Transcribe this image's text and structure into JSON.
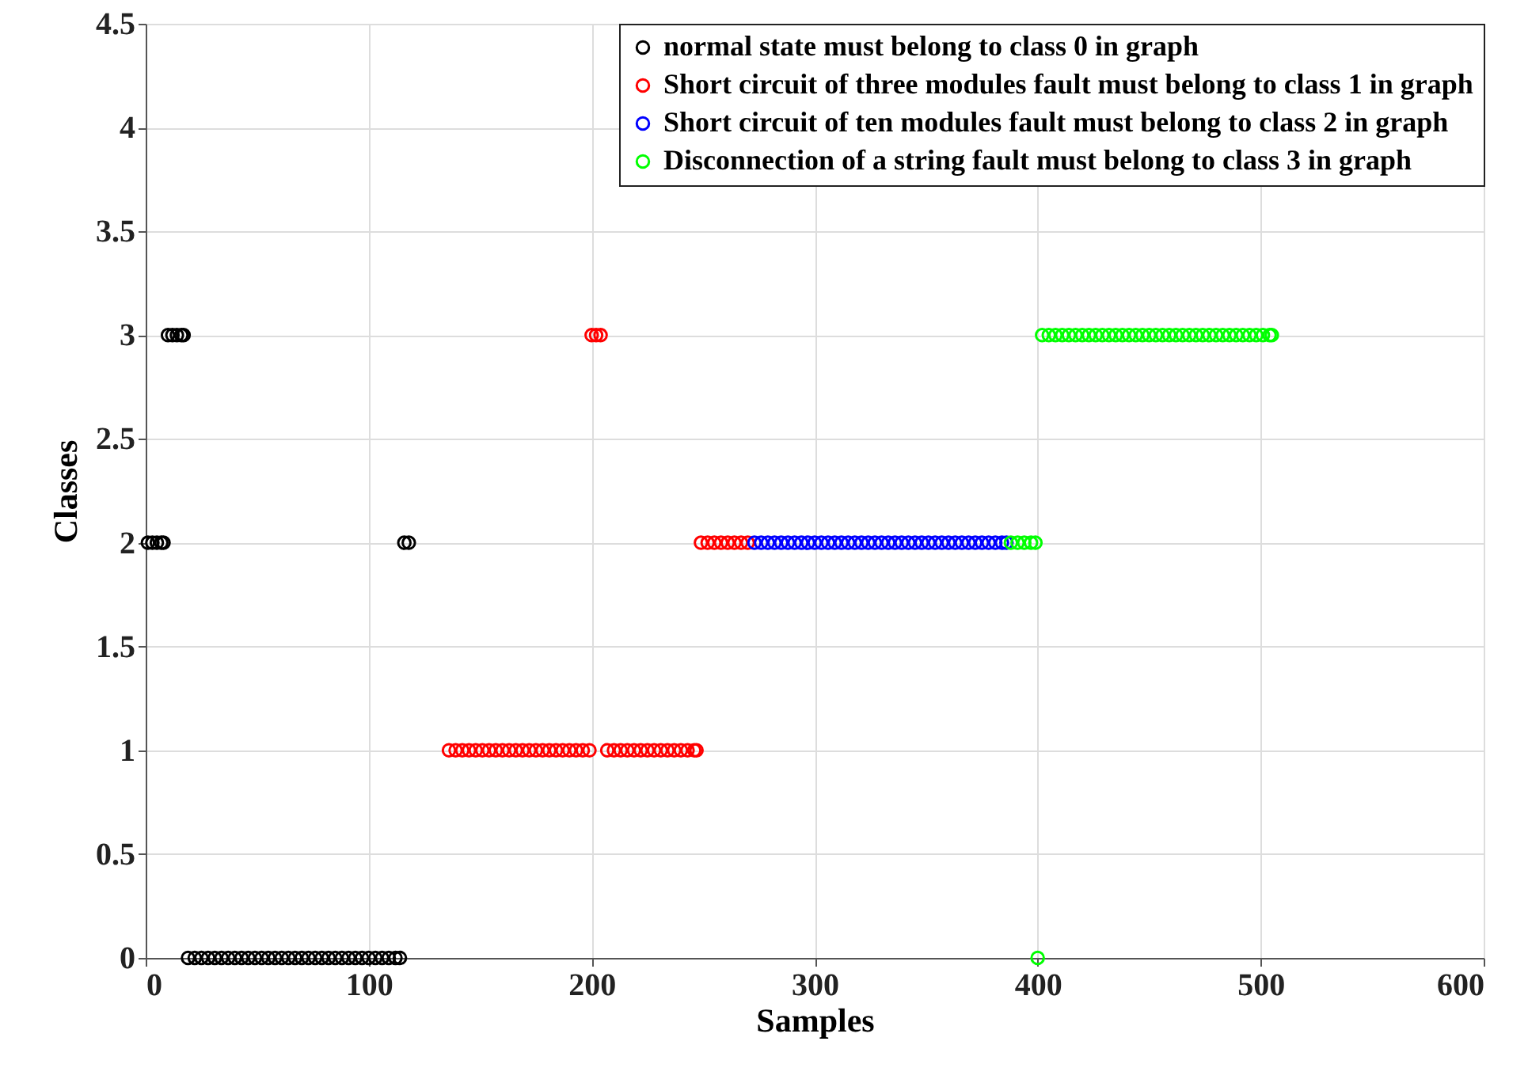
{
  "chart_data": {
    "type": "scatter",
    "xlabel": "Samples",
    "ylabel": "Classes",
    "xlim": [
      0,
      600
    ],
    "xticks": [
      0,
      100,
      200,
      300,
      400,
      500,
      600
    ],
    "ylim": [
      0,
      4.5
    ],
    "yticks": [
      0,
      0.5,
      1,
      1.5,
      2,
      2.5,
      3,
      3.5,
      4,
      4.5
    ],
    "grid": true,
    "legend": "top right",
    "marker": "circle",
    "series": [
      {
        "name": "normal state must belong to class 0 in graph",
        "color": "#000000",
        "x": [
          1,
          3,
          5,
          7,
          8,
          10,
          12,
          14,
          16,
          17,
          19,
          22,
          25,
          28,
          31,
          34,
          37,
          40,
          43,
          46,
          49,
          52,
          55,
          58,
          61,
          64,
          67,
          70,
          73,
          76,
          79,
          82,
          85,
          88,
          91,
          94,
          97,
          100,
          103,
          106,
          109,
          112,
          114,
          116,
          118
        ],
        "values": [
          2,
          2,
          2,
          2,
          2,
          3,
          3,
          3,
          3,
          3,
          0,
          0,
          0,
          0,
          0,
          0,
          0,
          0,
          0,
          0,
          0,
          0,
          0,
          0,
          0,
          0,
          0,
          0,
          0,
          0,
          0,
          0,
          0,
          0,
          0,
          0,
          0,
          0,
          0,
          0,
          0,
          0,
          0,
          2,
          2
        ]
      },
      {
        "name": "Short circuit of three modules fault must belong to class 1 in graph",
        "color": "#ff0000",
        "x": [
          136,
          139,
          142,
          145,
          148,
          151,
          154,
          157,
          160,
          163,
          166,
          169,
          172,
          175,
          178,
          181,
          184,
          187,
          190,
          193,
          196,
          199,
          200,
          202,
          204,
          207,
          210,
          213,
          216,
          219,
          222,
          225,
          228,
          231,
          234,
          237,
          240,
          243,
          246,
          247,
          249,
          252,
          255,
          258,
          261,
          264,
          267,
          270
        ],
        "values": [
          1,
          1,
          1,
          1,
          1,
          1,
          1,
          1,
          1,
          1,
          1,
          1,
          1,
          1,
          1,
          1,
          1,
          1,
          1,
          1,
          1,
          1,
          3,
          3,
          3,
          1,
          1,
          1,
          1,
          1,
          1,
          1,
          1,
          1,
          1,
          1,
          1,
          1,
          1,
          1,
          2,
          2,
          2,
          2,
          2,
          2,
          2,
          2
        ]
      },
      {
        "name": "Short circuit of ten modules fault must belong to class 2 in graph",
        "color": "#0000ff",
        "x": [
          273,
          276,
          279,
          282,
          285,
          288,
          291,
          294,
          297,
          300,
          303,
          306,
          309,
          312,
          315,
          318,
          321,
          324,
          327,
          330,
          333,
          336,
          339,
          342,
          345,
          348,
          351,
          354,
          357,
          360,
          363,
          366,
          369,
          372,
          375,
          378,
          381,
          384,
          386
        ],
        "values": [
          2,
          2,
          2,
          2,
          2,
          2,
          2,
          2,
          2,
          2,
          2,
          2,
          2,
          2,
          2,
          2,
          2,
          2,
          2,
          2,
          2,
          2,
          2,
          2,
          2,
          2,
          2,
          2,
          2,
          2,
          2,
          2,
          2,
          2,
          2,
          2,
          2,
          2,
          2
        ]
      },
      {
        "name": "Disconnection of a string fault must belong to class 3 in graph",
        "color": "#00ff00",
        "x": [
          388,
          391,
          394,
          397,
          399,
          400,
          402,
          405,
          408,
          411,
          414,
          417,
          420,
          423,
          426,
          429,
          432,
          435,
          438,
          441,
          444,
          447,
          450,
          453,
          456,
          459,
          462,
          465,
          468,
          471,
          474,
          477,
          480,
          483,
          486,
          489,
          492,
          495,
          498,
          501,
          504,
          505
        ],
        "values": [
          2,
          2,
          2,
          2,
          2,
          0,
          3,
          3,
          3,
          3,
          3,
          3,
          3,
          3,
          3,
          3,
          3,
          3,
          3,
          3,
          3,
          3,
          3,
          3,
          3,
          3,
          3,
          3,
          3,
          3,
          3,
          3,
          3,
          3,
          3,
          3,
          3,
          3,
          3,
          3,
          3,
          3
        ]
      }
    ]
  }
}
